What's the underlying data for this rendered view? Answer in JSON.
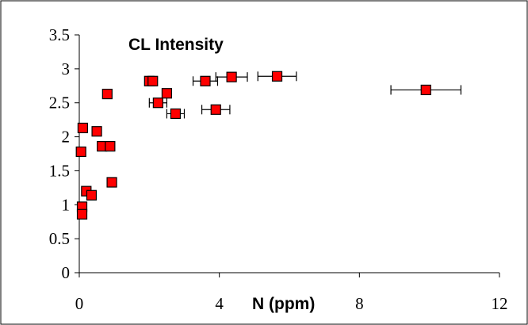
{
  "chart_data": {
    "type": "scatter",
    "title": "CL Intensity",
    "xlabel": "N (ppm)",
    "ylabel": "",
    "xlim": [
      0,
      12
    ],
    "ylim": [
      0,
      3.5
    ],
    "x_ticks": [
      "0",
      "4",
      "8",
      "12"
    ],
    "y_ticks": [
      "0",
      "0.5",
      "1",
      "1.5",
      "2",
      "2.5",
      "3",
      "3.5"
    ],
    "grid": false,
    "legend": "none",
    "marker_color": "#ff0000",
    "marker_edge_color": "#000000",
    "points": [
      {
        "x": 0.05,
        "y": 1.78
      },
      {
        "x": 0.1,
        "y": 2.13
      },
      {
        "x": 0.08,
        "y": 0.97
      },
      {
        "x": 0.08,
        "y": 0.86
      },
      {
        "x": 0.2,
        "y": 1.2
      },
      {
        "x": 0.35,
        "y": 1.14
      },
      {
        "x": 0.5,
        "y": 2.08
      },
      {
        "x": 0.65,
        "y": 1.86
      },
      {
        "x": 0.8,
        "y": 2.63
      },
      {
        "x": 0.88,
        "y": 1.86
      },
      {
        "x": 0.93,
        "y": 1.33
      },
      {
        "x": 2.0,
        "y": 2.82
      },
      {
        "x": 2.1,
        "y": 2.82
      },
      {
        "x": 2.25,
        "y": 2.5,
        "xerr": 0.25
      },
      {
        "x": 2.5,
        "y": 2.64
      },
      {
        "x": 2.75,
        "y": 2.34,
        "xerr": 0.25
      },
      {
        "x": 3.6,
        "y": 2.82,
        "xerr": 0.35
      },
      {
        "x": 3.9,
        "y": 2.4,
        "xerr": 0.4
      },
      {
        "x": 4.35,
        "y": 2.88,
        "xerr": 0.45
      },
      {
        "x": 5.65,
        "y": 2.89,
        "xerr": 0.55
      },
      {
        "x": 9.9,
        "y": 2.69,
        "xerr": 1.0
      }
    ]
  }
}
